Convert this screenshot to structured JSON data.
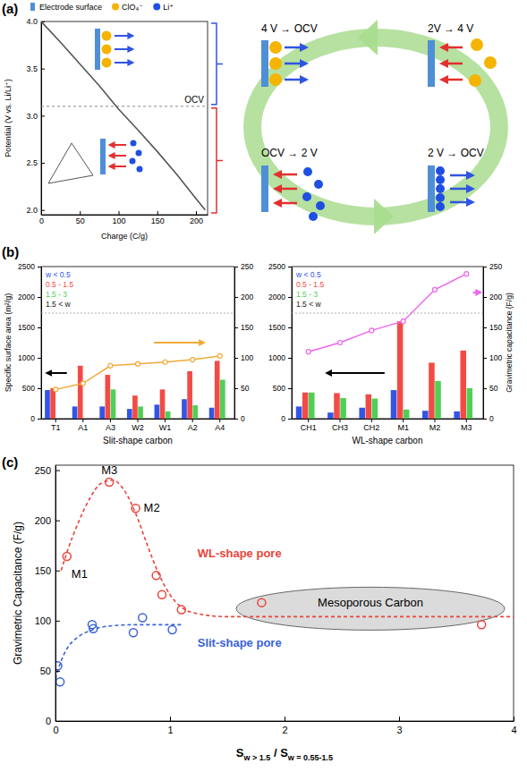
{
  "chart_data": [
    {
      "type": "line",
      "title": "(a)",
      "xlabel": "Charge (C/g)",
      "ylabel": "Potential (V vs. Li/Li⁺)",
      "x": [
        0,
        25,
        50,
        75,
        100,
        125,
        150,
        175,
        200,
        212
      ],
      "values": [
        4.0,
        3.78,
        3.55,
        3.32,
        3.07,
        2.85,
        2.62,
        2.38,
        2.12,
        2.0
      ],
      "color": "#555555",
      "xlim": [
        0,
        215
      ],
      "xticks": [
        0,
        50,
        100,
        150,
        200
      ],
      "ylim": [
        1.95,
        4.0
      ],
      "yticks": [
        {
          "value": 2,
          "label": "2.0"
        },
        {
          "value": 2.5,
          "label": "2.5"
        },
        {
          "value": 3,
          "label": "3.0"
        },
        {
          "value": 3.5,
          "label": "3.5"
        },
        {
          "value": 4,
          "label": "4.0"
        }
      ],
      "reference_lines": [
        {
          "value": 3.1,
          "label": "OCV"
        }
      ],
      "legend_items": [
        {
          "name": "Electrode surface",
          "color": "#4f8fd6"
        },
        {
          "name": "ClO₄⁻",
          "color": "#f5b400"
        },
        {
          "name": "Li⁺",
          "color": "#1f4fe0"
        }
      ],
      "diagram": [
        "4 V → OCV",
        "2V → 4 V",
        "OCV → 2 V",
        "2 V → OCV"
      ]
    },
    {
      "type": "bar",
      "title": "(b)",
      "xlabel": "Slit-shape carbon",
      "ylabel": "Specific surface area (m²/g)",
      "categories": [
        "T1",
        "A1",
        "A3",
        "W2",
        "W1",
        "A2",
        "A4"
      ],
      "series": [
        {
          "name": "w < 0.5",
          "color": "#3355e6",
          "values": [
            470,
            200,
            200,
            160,
            230,
            320,
            180
          ]
        },
        {
          "name": "0.5 - 1.5",
          "color": "#f24b45",
          "values": [
            500,
            870,
            720,
            380,
            480,
            780,
            950
          ]
        },
        {
          "name": "1.5 - 3",
          "color": "#4fcf55",
          "values": [
            0,
            0,
            480,
            200,
            120,
            220,
            640
          ]
        },
        {
          "name": "1.5 < w",
          "color": "#222222",
          "values": [
            0,
            0,
            0,
            0,
            0,
            0,
            0
          ]
        },
        {
          "type": "line",
          "axis": "y2",
          "color": "#f0aa3a",
          "marker": "circle",
          "values": [
            48,
            58,
            87,
            90,
            93,
            97,
            103
          ]
        }
      ],
      "ylim": [
        0,
        2500
      ],
      "yticks": [
        0,
        500,
        1000,
        1500,
        2000,
        2500
      ],
      "y2lim": [
        0,
        250
      ],
      "y2ticks": [
        0,
        50,
        100,
        150,
        200,
        250
      ],
      "legend": "top-left"
    },
    {
      "type": "bar",
      "xlabel": "WL-shape carbon",
      "y2label": "Gravimetric capacitance (F/g)",
      "categories": [
        "CH1",
        "CH3",
        "CH2",
        "M1",
        "M2",
        "M3"
      ],
      "series": [
        {
          "name": "w < 0.5",
          "color": "#3355e6",
          "values": [
            200,
            100,
            180,
            470,
            130,
            120
          ]
        },
        {
          "name": "0.5 - 1.5",
          "color": "#f24b45",
          "values": [
            430,
            420,
            400,
            1600,
            920,
            1120
          ]
        },
        {
          "name": "1.5 - 3",
          "color": "#4fcf55",
          "values": [
            430,
            340,
            330,
            150,
            620,
            500
          ]
        },
        {
          "name": "1.5 < w",
          "color": "#222222",
          "values": [
            0,
            0,
            0,
            0,
            0,
            0
          ]
        },
        {
          "type": "line",
          "axis": "y2",
          "color": "#ee66ee",
          "marker": "circle",
          "values": [
            110,
            125,
            145,
            160,
            212,
            238
          ]
        }
      ],
      "ylim": [
        0,
        2500
      ],
      "yticks": [
        0,
        500,
        1000,
        1500,
        2000,
        2500
      ],
      "y2lim": [
        0,
        250
      ],
      "y2ticks": [
        0,
        50,
        100,
        150,
        200,
        250
      ],
      "legend": "top-left"
    },
    {
      "type": "scatter",
      "title": "(c)",
      "xlabel": {
        "main": [
          "S",
          " / S"
        ],
        "subscripts": [
          "w > 1.5",
          "w = 0.55-1.5"
        ]
      },
      "ylabel": "Gravimetric Capacitance (F/g)",
      "xlim": [
        0,
        4
      ],
      "xticks": [
        0,
        1,
        2,
        3,
        4
      ],
      "ylim": [
        0,
        255
      ],
      "yticks": [
        0,
        50,
        100,
        150,
        200,
        250
      ],
      "series": [
        {
          "name": "WL-shape pore",
          "color": "#e8453c",
          "marker": "circle",
          "x": [
            0.1,
            0.47,
            0.7,
            0.88,
            0.93,
            1.1,
            1.8,
            3.72
          ],
          "values": [
            164,
            238,
            212,
            145,
            126,
            111,
            118,
            96
          ]
        },
        {
          "type": "line",
          "line_style": "dashed",
          "color": "#e8453c",
          "x": [
            0.05,
            0.1,
            0.2,
            0.3,
            0.4,
            0.5,
            0.6,
            0.7,
            0.8,
            0.9,
            1.0,
            1.2,
            1.5,
            2.0,
            3.0,
            4.0
          ],
          "values": [
            150,
            168,
            198,
            222,
            237,
            240,
            230,
            207,
            176,
            147,
            126,
            108,
            104,
            104,
            104,
            104
          ]
        },
        {
          "name": "Slit-shape pore",
          "color": "#3a62d8",
          "marker": "circle",
          "x": [
            0.02,
            0.04,
            0.32,
            0.33,
            0.68,
            0.76,
            1.02
          ],
          "values": [
            55,
            39,
            96,
            92,
            88,
            103,
            91
          ]
        },
        {
          "type": "line",
          "line_style": "dashed",
          "color": "#3a62d8",
          "x": [
            0,
            0.05,
            0.1,
            0.2,
            0.3,
            0.5,
            0.7,
            0.9,
            1.1
          ],
          "values": [
            42,
            60,
            72,
            84,
            90,
            95,
            96,
            96,
            96
          ]
        }
      ],
      "annotations": [
        {
          "text": "M1",
          "x": 0.1,
          "y": 164
        },
        {
          "text": "M3",
          "x": 0.47,
          "y": 238
        },
        {
          "text": "M2",
          "x": 0.7,
          "y": 212
        },
        {
          "text": "Mesoporous Carbon",
          "x": 2.75,
          "y": 112
        }
      ]
    }
  ]
}
